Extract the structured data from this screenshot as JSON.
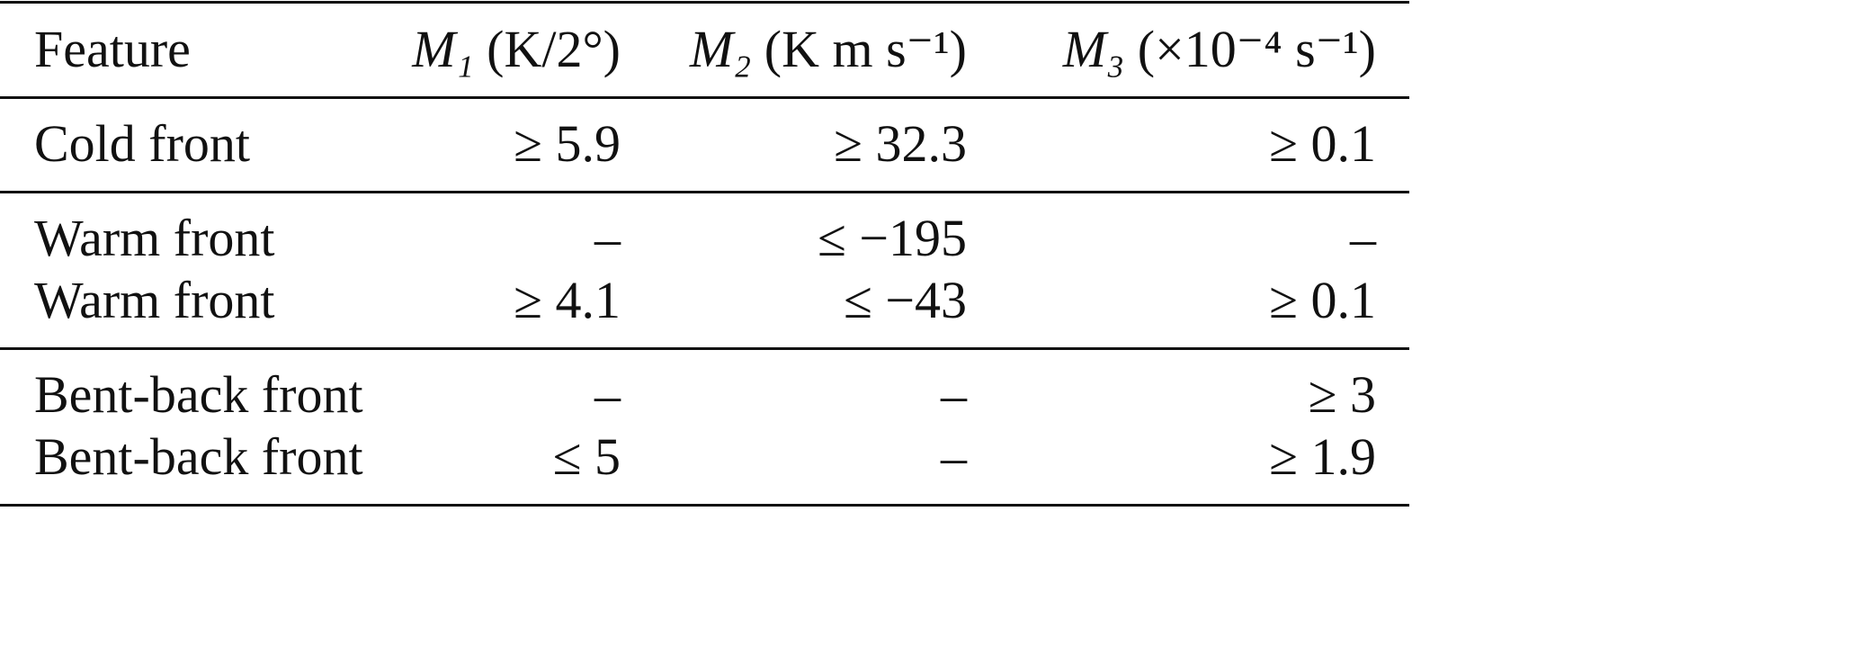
{
  "table": {
    "header": [
      "Feature",
      {
        "symbol": "M₁",
        "unit": "(K/2°)"
      },
      {
        "symbol": "M₂",
        "unit": "(K m s⁻¹)"
      },
      {
        "symbol": "M₃",
        "unit": "(×10⁻⁴ s⁻¹)"
      }
    ],
    "groups": [
      [
        [
          "Cold front",
          "≥ 5.9",
          "≥ 32.3",
          "≥ 0.1"
        ]
      ],
      [
        [
          "Warm front",
          "–",
          "≤ −195",
          "–"
        ],
        [
          "Warm front",
          "≥ 4.1",
          "≤ −43",
          "≥ 0.1"
        ]
      ],
      [
        [
          "Bent-back front",
          "–",
          "–",
          "≥ 3"
        ],
        [
          "Bent-back front",
          "≤ 5",
          "–",
          "≥ 1.9"
        ]
      ]
    ]
  }
}
